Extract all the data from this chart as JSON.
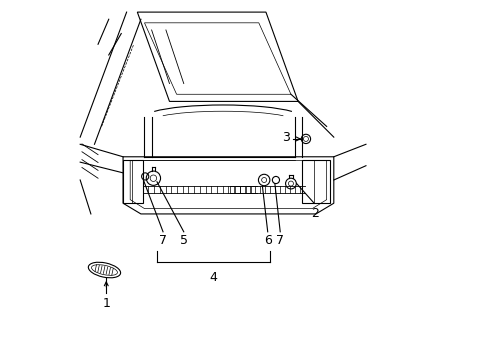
{
  "bg_color": "#ffffff",
  "line_color": "#000000",
  "fig_width": 4.89,
  "fig_height": 3.6,
  "dpi": 100,
  "label_fontsize": 9
}
